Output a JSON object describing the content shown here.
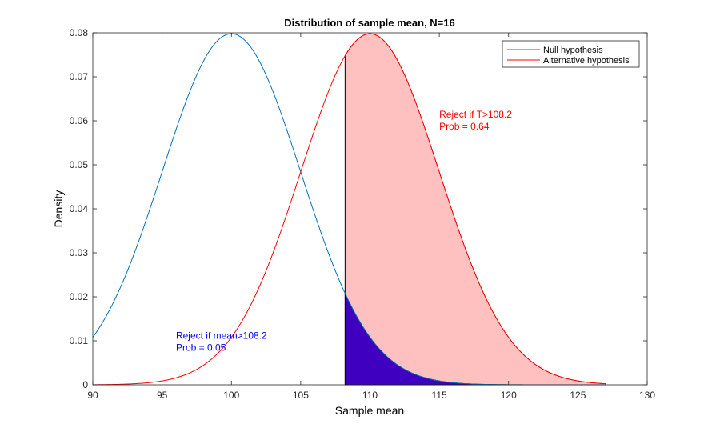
{
  "chart_data": {
    "type": "line",
    "title": "Distribution of sample mean, N=16",
    "xlabel": "Sample mean",
    "ylabel": "Density",
    "xlim": [
      90,
      130
    ],
    "ylim": [
      0,
      0.08
    ],
    "xticks": [
      90,
      95,
      100,
      105,
      110,
      115,
      120,
      125,
      130
    ],
    "yticks": [
      0,
      0.01,
      0.02,
      0.03,
      0.04,
      0.05,
      0.06,
      0.07,
      0.08
    ],
    "ytick_labels": [
      "0",
      "0.01",
      "0.02",
      "0.03",
      "0.04",
      "0.05",
      "0.06",
      "0.07",
      "0.08"
    ],
    "grid": false,
    "legend_position": "top-right",
    "critical_value": 108.2,
    "series": [
      {
        "name": "Null hypothesis",
        "mean": 100,
        "sd": 5,
        "x_range": [
          90,
          127
        ],
        "color": "#0072bd"
      },
      {
        "name": "Alternative hypothesis",
        "mean": 110,
        "sd": 5,
        "x_range": [
          90,
          127
        ],
        "color": "#ff0000"
      }
    ],
    "shaded_regions": [
      {
        "series": "Alternative hypothesis",
        "from": 108.2,
        "to": 127,
        "fill": "#ffc0c0"
      },
      {
        "series": "Null hypothesis",
        "from": 108.2,
        "to": 127,
        "fill": "#4000c0"
      }
    ],
    "annotations": [
      {
        "lines": [
          "Reject if T>108.2",
          "Prob = 0.64"
        ],
        "x": 115,
        "y": 0.0615,
        "color": "#ff0000"
      },
      {
        "lines": [
          "Reject if mean>108.2",
          "Prob = 0.05"
        ],
        "x": 96,
        "y": 0.0112,
        "color": "#0000ff"
      }
    ]
  }
}
